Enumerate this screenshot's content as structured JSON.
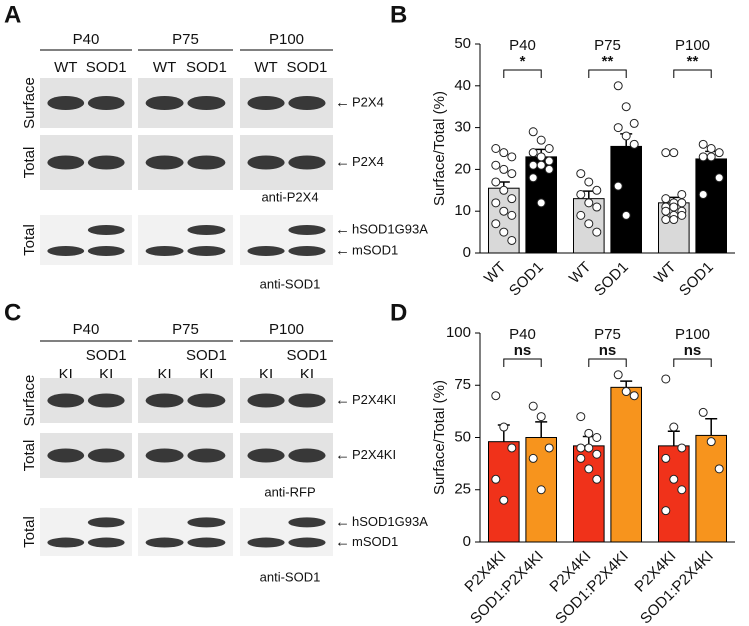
{
  "blots": [
    {
      "panel": "A",
      "groups": [
        {
          "name": "P40",
          "lanes": [
            "WT",
            "SOD1"
          ]
        },
        {
          "name": "P75",
          "lanes": [
            "WT",
            "SOD1"
          ]
        },
        {
          "name": "P100",
          "lanes": [
            "WT",
            "SOD1"
          ]
        }
      ],
      "rows": [
        {
          "label": "Surface",
          "markers": [
            "P2X4"
          ]
        },
        {
          "label": "Total",
          "markers": [
            "P2X4"
          ],
          "antibody": "anti-P2X4"
        },
        {
          "label": "Total",
          "markers": [
            "hSOD1G93A",
            "mSOD1"
          ],
          "antibody": "anti-SOD1"
        }
      ]
    },
    {
      "panel": "C",
      "groups": [
        {
          "name": "P40",
          "prefix": "SOD1",
          "lanes": [
            "KI",
            "KI"
          ]
        },
        {
          "name": "P75",
          "prefix": "SOD1",
          "lanes": [
            "KI",
            "KI"
          ]
        },
        {
          "name": "P100",
          "prefix": "SOD1",
          "lanes": [
            "KI",
            "KI"
          ]
        }
      ],
      "rows": [
        {
          "label": "Surface",
          "markers": [
            "P2X4KI"
          ]
        },
        {
          "label": "Total",
          "markers": [
            "P2X4KI"
          ],
          "antibody": "anti-RFP"
        },
        {
          "label": "Total",
          "markers": [
            "hSOD1G93A",
            "mSOD1"
          ],
          "antibody": "anti-SOD1"
        }
      ]
    }
  ],
  "chart_data": [
    {
      "type": "bar",
      "panel": "B",
      "ylabel": "Surface/Total (%)",
      "groups": [
        "P40",
        "P75",
        "P100"
      ],
      "annotations": [
        "*",
        "**",
        "**"
      ],
      "categories": [
        "WT",
        "SOD1",
        "WT",
        "SOD1",
        "WT",
        "SOD1"
      ],
      "colors": [
        "#d9d9d9",
        "#000000",
        "#d9d9d9",
        "#000000",
        "#d9d9d9",
        "#000000"
      ],
      "values": [
        15.5,
        23,
        13,
        25.5,
        12,
        22.5
      ],
      "errors": [
        1.5,
        1.8,
        1.8,
        3,
        1.3,
        1.8
      ],
      "points": [
        [
          25,
          24,
          23,
          21,
          20,
          19,
          17,
          15,
          13,
          12,
          10,
          9,
          7,
          5,
          3
        ],
        [
          29,
          27,
          25,
          24,
          23,
          22,
          21,
          21,
          20,
          18,
          12
        ],
        [
          19,
          17,
          15,
          14,
          12,
          11,
          9,
          7,
          5
        ],
        [
          40,
          35,
          31,
          30,
          28,
          26,
          16,
          9
        ],
        [
          24,
          24,
          14,
          13,
          12,
          12,
          11,
          11,
          10,
          10,
          9,
          9,
          8,
          8
        ],
        [
          26,
          25,
          24,
          23,
          23,
          18,
          14
        ]
      ],
      "ylim": [
        0,
        50
      ],
      "yticks": [
        0,
        10,
        20,
        30,
        40,
        50
      ]
    },
    {
      "type": "bar",
      "panel": "D",
      "ylabel": "Surface/Total (%)",
      "groups": [
        "P40",
        "P75",
        "P100"
      ],
      "annotations": [
        "ns",
        "ns",
        "ns"
      ],
      "categories": [
        "P2X4KI",
        "SOD1:P2X4KI",
        "P2X4KI",
        "SOD1:P2X4KI",
        "P2X4KI",
        "SOD1:P2X4KI"
      ],
      "colors": [
        "#f0321a",
        "#f7941d",
        "#f0321a",
        "#f7941d",
        "#f0321a",
        "#f7941d"
      ],
      "values": [
        48,
        50,
        46,
        74,
        46,
        51
      ],
      "errors": [
        8,
        7.5,
        4.5,
        3,
        7,
        8
      ],
      "points": [
        [
          70,
          55,
          45,
          30,
          20
        ],
        [
          65,
          60,
          45,
          40,
          25
        ],
        [
          60,
          52,
          50,
          45,
          45,
          42,
          40,
          35,
          30
        ],
        [
          80,
          72,
          70
        ],
        [
          78,
          55,
          45,
          40,
          30,
          25,
          15
        ],
        [
          62,
          48,
          35
        ]
      ],
      "ylim": [
        0,
        100
      ],
      "yticks": [
        0,
        25,
        50,
        75,
        100
      ]
    }
  ]
}
